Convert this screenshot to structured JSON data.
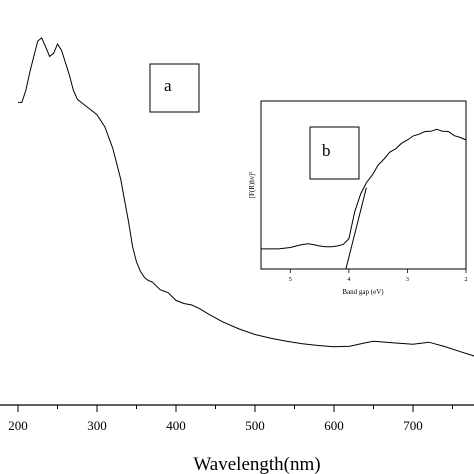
{
  "chart_data": [
    {
      "type": "line",
      "panel_label": "a",
      "xlabel": "Wavelength(nm)",
      "ylabel": "",
      "xlim": [
        195,
        780
      ],
      "ylim": [
        0,
        1
      ],
      "x_ticks": [
        200,
        300,
        400,
        500,
        600,
        700
      ],
      "grid": false,
      "series": [
        {
          "x": [
            200,
            205,
            210,
            215,
            220,
            225,
            230,
            235,
            240,
            245,
            250,
            255,
            260,
            265,
            270,
            275,
            280,
            290,
            300,
            310,
            320,
            330,
            340,
            345,
            350,
            355,
            360,
            365,
            370,
            380,
            390,
            400,
            410,
            420,
            430,
            440,
            450,
            460,
            480,
            500,
            520,
            540,
            560,
            580,
            600,
            620,
            640,
            650,
            660,
            680,
            700,
            720,
            740,
            760,
            780
          ],
          "y": [
            0.8,
            0.8,
            0.84,
            0.9,
            0.95,
            1.0,
            1.01,
            0.98,
            0.95,
            0.96,
            0.99,
            0.97,
            0.93,
            0.89,
            0.84,
            0.81,
            0.8,
            0.78,
            0.76,
            0.72,
            0.65,
            0.55,
            0.41,
            0.33,
            0.28,
            0.25,
            0.23,
            0.22,
            0.215,
            0.19,
            0.18,
            0.155,
            0.145,
            0.14,
            0.128,
            0.112,
            0.098,
            0.084,
            0.062,
            0.044,
            0.032,
            0.022,
            0.014,
            0.008,
            0.004,
            0.006,
            0.017,
            0.022,
            0.02,
            0.016,
            0.012,
            0.019,
            0.005,
            -0.012,
            -0.028
          ]
        }
      ]
    },
    {
      "type": "line",
      "panel_label": "b",
      "xlabel": "Band gap (eV)",
      "ylabel": "[F(R)hν]²",
      "xlim": [
        5.5,
        2
      ],
      "x_ticks": [
        5,
        4,
        3,
        2
      ],
      "ylim": [
        0,
        1
      ],
      "grid": false,
      "series": [
        {
          "x": [
            5.5,
            5.2,
            5.0,
            4.9,
            4.8,
            4.7,
            4.6,
            4.5,
            4.4,
            4.3,
            4.2,
            4.1,
            4.0,
            3.9,
            3.8,
            3.7,
            3.6,
            3.5,
            3.4,
            3.3,
            3.2,
            3.1,
            3.0,
            2.9,
            2.8,
            2.7,
            2.6,
            2.5,
            2.4,
            2.3,
            2.2,
            2.1,
            2.0
          ],
          "y": [
            0.11,
            0.11,
            0.12,
            0.13,
            0.14,
            0.145,
            0.14,
            0.13,
            0.125,
            0.125,
            0.13,
            0.14,
            0.18,
            0.36,
            0.49,
            0.56,
            0.62,
            0.68,
            0.73,
            0.77,
            0.8,
            0.83,
            0.86,
            0.88,
            0.9,
            0.91,
            0.92,
            0.925,
            0.92,
            0.91,
            0.89,
            0.87,
            0.86
          ]
        },
        {
          "x": [
            4.05,
            3.7
          ],
          "y": [
            -0.05,
            0.53
          ]
        }
      ]
    }
  ]
}
